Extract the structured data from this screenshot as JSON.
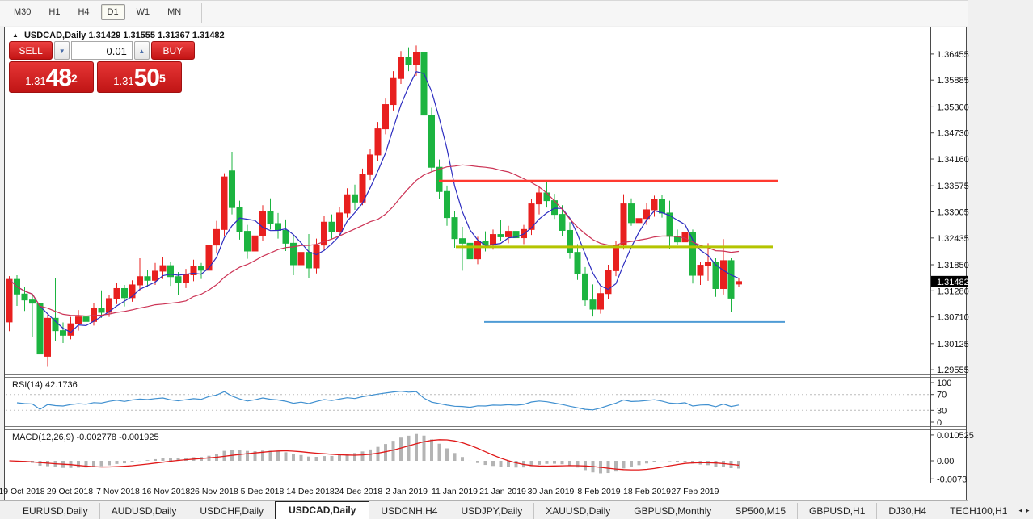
{
  "toolbar": {
    "timeframes": [
      {
        "label": "M30",
        "active": false
      },
      {
        "label": "H1",
        "active": false
      },
      {
        "label": "H4",
        "active": false
      },
      {
        "label": "D1",
        "active": true
      },
      {
        "label": "W1",
        "active": false
      },
      {
        "label": "MN",
        "active": false
      }
    ]
  },
  "chart_header": {
    "symbol_title": "USDCAD,Daily",
    "ohlc_display": "1.31429 1.31555 1.31367 1.31482",
    "collapse_arrow": "▲"
  },
  "trade_panel": {
    "sell_label": "SELL",
    "buy_label": "BUY",
    "volume": "0.01",
    "spin_down": "▼",
    "spin_up": "▲",
    "sell_price": {
      "prefix": "1.31",
      "big": "48",
      "sup": "2"
    },
    "buy_price": {
      "prefix": "1.31",
      "big": "50",
      "sup": "5"
    }
  },
  "chart_data": {
    "type": "candlestick",
    "symbol": "USDCAD",
    "timeframe": "Daily",
    "ohlc_current": {
      "open": "1.31429",
      "high": "1.31555",
      "low": "1.31367",
      "close": "1.31482"
    },
    "current_price_tag": "1.31482",
    "price_axis_ticks": [
      "1.36455",
      "1.35885",
      "1.35300",
      "1.34730",
      "1.34160",
      "1.33575",
      "1.33005",
      "1.32435",
      "1.31850",
      "1.31280",
      "1.30710",
      "1.30125",
      "1.29555"
    ],
    "price_axis_values": [
      1.36455,
      1.35885,
      1.353,
      1.3473,
      1.3416,
      1.33575,
      1.33005,
      1.32435,
      1.3185,
      1.3128,
      1.3071,
      1.30125,
      1.29555
    ],
    "ylim": [
      1.2947,
      1.3698
    ],
    "date_ticks": [
      "19 Oct 2018",
      "29 Oct 2018",
      "7 Nov 2018",
      "16 Nov 2018",
      "26 Nov 2018",
      "5 Dec 2018",
      "14 Dec 2018",
      "24 Dec 2018",
      "2 Jan 2019",
      "11 Jan 2019",
      "21 Jan 2019",
      "30 Jan 2019",
      "8 Feb 2019",
      "18 Feb 2019",
      "27 Feb 2019"
    ],
    "levels": [
      {
        "name": "resistance-line",
        "value": 1.3368,
        "color": "#ff3a30",
        "x1": 542,
        "x2": 962,
        "width": 3
      },
      {
        "name": "pivot-line",
        "value": 1.3224,
        "color": "#b4c400",
        "x1": 563,
        "x2": 955,
        "width": 3
      },
      {
        "name": "support-line",
        "value": 1.306,
        "color": "#4f9bd5",
        "x1": 598,
        "x2": 970,
        "width": 2
      }
    ],
    "moving_averages": [
      {
        "name": "ma-fast",
        "period": 5,
        "color": "#2d2dc0"
      },
      {
        "name": "ma-slow",
        "period": 20,
        "color": "#cc3355"
      }
    ],
    "candles": [
      [
        1.306,
        1.316,
        1.304,
        1.3153
      ],
      [
        1.3153,
        1.3162,
        1.3095,
        1.3121
      ],
      [
        1.3121,
        1.3136,
        1.3084,
        1.3108
      ],
      [
        1.3108,
        1.3119,
        1.3028,
        1.3101
      ],
      [
        1.3101,
        1.3109,
        1.2978,
        1.299
      ],
      [
        1.2985,
        1.3076,
        1.2962,
        1.3068
      ],
      [
        1.3068,
        1.3155,
        1.3019,
        1.3041
      ],
      [
        1.3041,
        1.3059,
        1.3014,
        1.3031
      ],
      [
        1.3031,
        1.3071,
        1.3022,
        1.3056
      ],
      [
        1.3056,
        1.3086,
        1.3041,
        1.3071
      ],
      [
        1.3071,
        1.3081,
        1.3044,
        1.3061
      ],
      [
        1.3061,
        1.3101,
        1.3052,
        1.3089
      ],
      [
        1.3089,
        1.3129,
        1.3069,
        1.3081
      ],
      [
        1.3081,
        1.3119,
        1.3071,
        1.3111
      ],
      [
        1.3111,
        1.3146,
        1.3099,
        1.3133
      ],
      [
        1.3133,
        1.3141,
        1.3094,
        1.3113
      ],
      [
        1.3113,
        1.3151,
        1.3104,
        1.3141
      ],
      [
        1.3141,
        1.3199,
        1.3129,
        1.3159
      ],
      [
        1.3159,
        1.3173,
        1.3137,
        1.3151
      ],
      [
        1.3151,
        1.3189,
        1.3141,
        1.3171
      ],
      [
        1.3171,
        1.3201,
        1.3154,
        1.3183
      ],
      [
        1.3183,
        1.3191,
        1.3139,
        1.3159
      ],
      [
        1.3159,
        1.3169,
        1.3119,
        1.3146
      ],
      [
        1.3146,
        1.3176,
        1.3134,
        1.3163
      ],
      [
        1.3163,
        1.3196,
        1.3149,
        1.3181
      ],
      [
        1.3181,
        1.3189,
        1.3154,
        1.3173
      ],
      [
        1.3173,
        1.3242,
        1.3164,
        1.3228
      ],
      [
        1.3228,
        1.3281,
        1.3211,
        1.3262
      ],
      [
        1.3262,
        1.3385,
        1.3248,
        1.3377
      ],
      [
        1.339,
        1.3432,
        1.3295,
        1.331
      ],
      [
        1.331,
        1.3325,
        1.324,
        1.3258
      ],
      [
        1.3258,
        1.3272,
        1.3198,
        1.3215
      ],
      [
        1.3215,
        1.3262,
        1.3205,
        1.3248
      ],
      [
        1.3248,
        1.3315,
        1.3238,
        1.3302
      ],
      [
        1.3302,
        1.333,
        1.3262,
        1.3275
      ],
      [
        1.3275,
        1.3298,
        1.3242,
        1.326
      ],
      [
        1.326,
        1.3284,
        1.3215,
        1.3232
      ],
      [
        1.3232,
        1.3249,
        1.3162,
        1.3185
      ],
      [
        1.3185,
        1.3228,
        1.3168,
        1.3212
      ],
      [
        1.3212,
        1.3252,
        1.3155,
        1.3178
      ],
      [
        1.3178,
        1.3242,
        1.3166,
        1.3228
      ],
      [
        1.3228,
        1.3292,
        1.3216,
        1.3278
      ],
      [
        1.3278,
        1.3295,
        1.3242,
        1.3258
      ],
      [
        1.3258,
        1.3312,
        1.3248,
        1.3298
      ],
      [
        1.3298,
        1.3352,
        1.3288,
        1.3338
      ],
      [
        1.3338,
        1.336,
        1.3305,
        1.3322
      ],
      [
        1.3322,
        1.3395,
        1.3315,
        1.3382
      ],
      [
        1.3382,
        1.3438,
        1.337,
        1.3425
      ],
      [
        1.3425,
        1.3497,
        1.3412,
        1.3482
      ],
      [
        1.3482,
        1.3548,
        1.347,
        1.3535
      ],
      [
        1.3535,
        1.3608,
        1.3522,
        1.3592
      ],
      [
        1.3592,
        1.3652,
        1.358,
        1.3638
      ],
      [
        1.3638,
        1.366,
        1.3608,
        1.3622
      ],
      [
        1.3622,
        1.3664,
        1.3598,
        1.3648
      ],
      [
        1.3648,
        1.3655,
        1.3502,
        1.3512
      ],
      [
        1.3512,
        1.3528,
        1.3388,
        1.3398
      ],
      [
        1.3398,
        1.3415,
        1.3328,
        1.3345
      ],
      [
        1.3345,
        1.3358,
        1.327,
        1.3288
      ],
      [
        1.3288,
        1.3302,
        1.3222,
        1.3242
      ],
      [
        1.3242,
        1.3268,
        1.3172,
        1.3232
      ],
      [
        1.3232,
        1.3255,
        1.313,
        1.3198
      ],
      [
        1.3198,
        1.3246,
        1.3186,
        1.3236
      ],
      [
        1.3236,
        1.3258,
        1.3214,
        1.3228
      ],
      [
        1.3228,
        1.3262,
        1.3218,
        1.3251
      ],
      [
        1.3251,
        1.3282,
        1.3238,
        1.3246
      ],
      [
        1.3246,
        1.327,
        1.3232,
        1.3258
      ],
      [
        1.3258,
        1.3282,
        1.3238,
        1.3244
      ],
      [
        1.3244,
        1.3272,
        1.323,
        1.3262
      ],
      [
        1.3262,
        1.3329,
        1.325,
        1.3318
      ],
      [
        1.3318,
        1.3357,
        1.3295,
        1.3342
      ],
      [
        1.3342,
        1.3368,
        1.331,
        1.3325
      ],
      [
        1.3325,
        1.334,
        1.3285,
        1.3295
      ],
      [
        1.3295,
        1.3315,
        1.3248,
        1.326
      ],
      [
        1.326,
        1.3278,
        1.3198,
        1.3212
      ],
      [
        1.3212,
        1.323,
        1.3152,
        1.3165
      ],
      [
        1.3165,
        1.318,
        1.3095,
        1.3108
      ],
      [
        1.3108,
        1.3142,
        1.3072,
        1.3088
      ],
      [
        1.3088,
        1.3135,
        1.3078,
        1.3122
      ],
      [
        1.3122,
        1.3185,
        1.311,
        1.3172
      ],
      [
        1.3172,
        1.3238,
        1.316,
        1.3228
      ],
      [
        1.3228,
        1.3339,
        1.3218,
        1.3318
      ],
      [
        1.3318,
        1.333,
        1.327,
        1.3277
      ],
      [
        1.3277,
        1.3301,
        1.3258,
        1.3286
      ],
      [
        1.3286,
        1.332,
        1.3272,
        1.3305
      ],
      [
        1.3305,
        1.3336,
        1.329,
        1.3328
      ],
      [
        1.3328,
        1.3337,
        1.3288,
        1.3298
      ],
      [
        1.3298,
        1.3325,
        1.322,
        1.3247
      ],
      [
        1.3247,
        1.3262,
        1.3228,
        1.3235
      ],
      [
        1.3235,
        1.3281,
        1.3222,
        1.3256
      ],
      [
        1.3256,
        1.3262,
        1.3144,
        1.3162
      ],
      [
        1.3162,
        1.3192,
        1.3141,
        1.3184
      ],
      [
        1.3184,
        1.3232,
        1.315,
        1.319
      ],
      [
        1.319,
        1.3199,
        1.3115,
        1.3133
      ],
      [
        1.3133,
        1.3241,
        1.312,
        1.3194
      ],
      [
        1.3194,
        1.3199,
        1.3082,
        1.3112
      ],
      [
        1.31429,
        1.31555,
        1.31367,
        1.31482
      ]
    ],
    "indicators": [
      {
        "name": "RSI",
        "label": "RSI(14) 42.1736",
        "params": "14",
        "value": "42.1736",
        "axis_ticks": [
          "100",
          "70",
          "30",
          "0"
        ],
        "axis_values": [
          100,
          70,
          30,
          0
        ],
        "levels": [
          70,
          30
        ],
        "line_color": "#4090d0",
        "level_color": "#bbbbbb"
      },
      {
        "name": "MACD",
        "label": "MACD(12,26,9) -0.002778 -0.001925",
        "params": "12,26,9",
        "value": "-0.002778",
        "signal_value": "-0.001925",
        "axis_ticks": [
          "0.010525",
          "0.00",
          "-0.0073"
        ],
        "axis_values": [
          0.010525,
          0.0,
          -0.0073
        ],
        "hist_color": "#b4b4b4",
        "signal_color": "#e01818"
      }
    ],
    "colors": {
      "up": "#e8201f",
      "down": "#1cb440",
      "background": "#ffffff",
      "axis_text": "#111111"
    }
  },
  "tabs": {
    "items": [
      {
        "label": "EURUSD,Daily",
        "active": false
      },
      {
        "label": "AUDUSD,Daily",
        "active": false
      },
      {
        "label": "USDCHF,Daily",
        "active": false
      },
      {
        "label": "USDCAD,Daily",
        "active": true
      },
      {
        "label": "USDCNH,H4",
        "active": false
      },
      {
        "label": "USDJPY,Daily",
        "active": false
      },
      {
        "label": "XAUUSD,Daily",
        "active": false
      },
      {
        "label": "GBPUSD,Monthly",
        "active": false
      },
      {
        "label": "SP500,M15",
        "active": false
      },
      {
        "label": "GBPUSD,H1",
        "active": false
      },
      {
        "label": "DJ30,H4",
        "active": false
      },
      {
        "label": "TECH100,H1",
        "active": false
      }
    ],
    "scroll_left": "◂",
    "scroll_right": "▸"
  }
}
